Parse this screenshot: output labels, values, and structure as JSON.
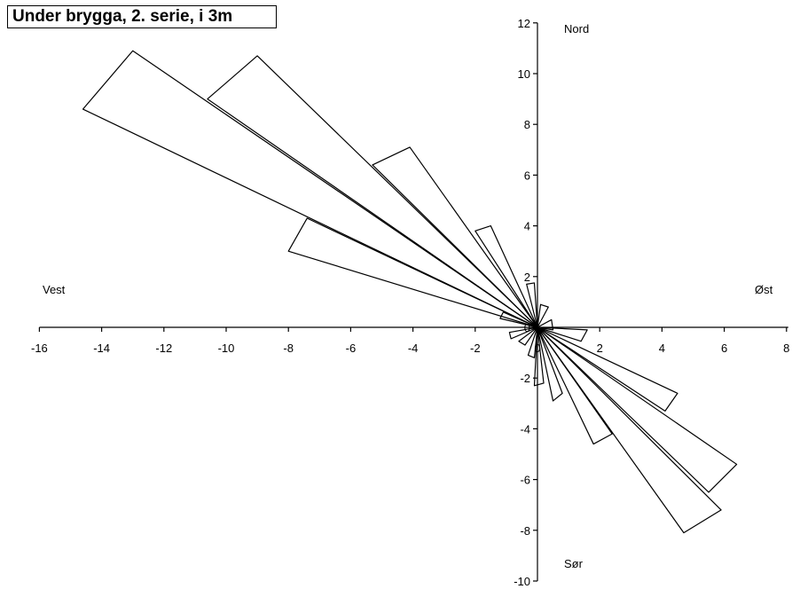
{
  "chart_data": {
    "type": "polar-rose",
    "title": "Under brygga, 2. serie, i 3m",
    "compass_labels": {
      "north": "Nord",
      "east": "Øst",
      "south": "Sør",
      "west": "Vest"
    },
    "xlim": [
      -16,
      8
    ],
    "ylim": [
      -10,
      12
    ],
    "xticks": [
      -16,
      -14,
      -12,
      -10,
      -8,
      -6,
      -4,
      -2,
      0,
      2,
      4,
      6,
      8
    ],
    "yticks": [
      -10,
      -8,
      -6,
      -4,
      -2,
      0,
      2,
      4,
      6,
      8,
      10,
      12
    ],
    "grid": false,
    "petals": [
      {
        "direction_deg": 292.5,
        "p1": [
          -14.6,
          8.6
        ],
        "p2": [
          -13.0,
          10.9
        ]
      },
      {
        "direction_deg": 302.5,
        "p1": [
          -10.6,
          9.0
        ],
        "p2": [
          -9.0,
          10.7
        ]
      },
      {
        "direction_deg": 320,
        "p1": [
          -5.3,
          6.4
        ],
        "p2": [
          -4.1,
          7.1
        ]
      },
      {
        "direction_deg": 333,
        "p1": [
          -2.0,
          3.8
        ],
        "p2": [
          -1.5,
          4.0
        ]
      },
      {
        "direction_deg": 350,
        "p1": [
          -0.35,
          1.7
        ],
        "p2": [
          -0.1,
          1.75
        ]
      },
      {
        "direction_deg": 295,
        "p1": [
          -8.0,
          3.0
        ],
        "p2": [
          -7.4,
          4.3
        ]
      },
      {
        "direction_deg": 278,
        "p1": [
          -1.2,
          0.35
        ],
        "p2": [
          -1.1,
          0.6
        ]
      },
      {
        "direction_deg": 10,
        "p1": [
          0.1,
          0.9
        ],
        "p2": [
          0.35,
          0.8
        ]
      },
      {
        "direction_deg": 75,
        "p1": [
          0.45,
          0.3
        ],
        "p2": [
          0.5,
          -0.1
        ]
      },
      {
        "direction_deg": 100,
        "p1": [
          1.6,
          -0.1
        ],
        "p2": [
          1.4,
          -0.55
        ]
      },
      {
        "direction_deg": 122.5,
        "p1": [
          4.5,
          -2.6
        ],
        "p2": [
          4.1,
          -3.3
        ]
      },
      {
        "direction_deg": 130,
        "p1": [
          6.4,
          -5.4
        ],
        "p2": [
          5.5,
          -6.5
        ]
      },
      {
        "direction_deg": 140,
        "p1": [
          5.9,
          -7.2
        ],
        "p2": [
          4.7,
          -8.1
        ]
      },
      {
        "direction_deg": 152,
        "p1": [
          2.4,
          -4.2
        ],
        "p2": [
          1.8,
          -4.6
        ]
      },
      {
        "direction_deg": 163,
        "p1": [
          0.8,
          -2.6
        ],
        "p2": [
          0.5,
          -2.9
        ]
      },
      {
        "direction_deg": 175,
        "p1": [
          0.2,
          -2.2
        ],
        "p2": [
          -0.1,
          -2.3
        ]
      },
      {
        "direction_deg": 190,
        "p1": [
          -0.1,
          -1.2
        ],
        "p2": [
          -0.3,
          -1.1
        ]
      },
      {
        "direction_deg": 210,
        "p1": [
          -0.4,
          -0.7
        ],
        "p2": [
          -0.6,
          -0.55
        ]
      },
      {
        "direction_deg": 250,
        "p1": [
          -0.9,
          -0.2
        ],
        "p2": [
          -0.85,
          -0.45
        ]
      }
    ]
  }
}
